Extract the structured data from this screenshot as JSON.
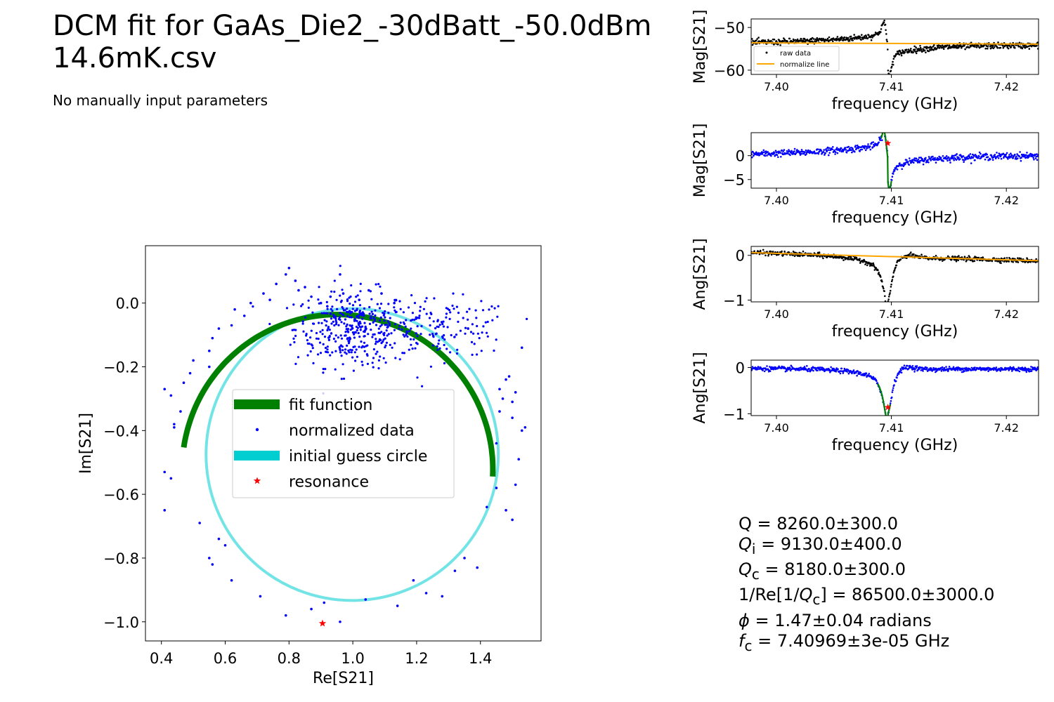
{
  "header": {
    "title_line1": "DCM fit for GaAs_Die2_-30dBatt_-50.0dBm",
    "title_line2": "14.6mK.csv",
    "subtitle": "No manually input parameters"
  },
  "results": {
    "q": "Q = 8260.0±300.0",
    "qi_sym": "Q",
    "qi_sub": "i",
    "qi_val": " = 9130.0±400.0",
    "qc_sym": "Q",
    "qc_sub": "c",
    "qc_val": " = 8180.0±300.0",
    "inv_pre": "1/Re[1/",
    "inv_sym": "Q",
    "inv_sub": "c",
    "inv_post": "] = 86500.0±3000.0",
    "phi_sym": "ϕ",
    "phi_val": " = 1.47±0.04 radians",
    "fc_sym": "f",
    "fc_sub": "c",
    "fc_val": " = 7.40969±3e-05 GHz"
  },
  "colors": {
    "raw": "#000000",
    "normalized": "#0000ff",
    "fit": "#008000",
    "guess": "#00ced1",
    "normalize_line": "#ffa500",
    "resonance": "#ff0000"
  },
  "chart_data": [
    {
      "id": "circle",
      "type": "scatter",
      "xlabel": "Re[S21]",
      "ylabel": "Im[S21]",
      "xlim": [
        0.35,
        1.59
      ],
      "ylim": [
        -1.06,
        0.18
      ],
      "xticks": [
        0.4,
        0.6,
        0.8,
        1.0,
        1.2,
        1.4
      ],
      "xtick_labels": [
        "0.4",
        "0.6",
        "0.8",
        "1.0",
        "1.2",
        "1.4"
      ],
      "yticks": [
        0.0,
        -0.2,
        -0.4,
        -0.6,
        -0.8,
        -1.0
      ],
      "ytick_labels": [
        "0.0",
        "−0.2",
        "−0.4",
        "−0.6",
        "−0.8",
        "−1.0"
      ],
      "legend": {
        "placement": "center",
        "entries": [
          "fit function",
          "normalized data",
          "initial guess circle",
          "resonance"
        ]
      },
      "fit_circle": {
        "center": [
          0.952,
          -0.523
        ],
        "radius": 0.487,
        "from_point": [
          0.45,
          -0.45
        ],
        "to_point": [
          1.455,
          -0.545
        ]
      },
      "guess_circle": {
        "center": [
          0.998,
          -0.475
        ],
        "radius": 0.458
      },
      "resonance": [
        0.905,
        -1.005
      ],
      "data": [
        [
          0.41,
          -0.27
        ],
        [
          0.43,
          -0.29
        ],
        [
          0.44,
          -0.38
        ],
        [
          0.44,
          -0.39
        ],
        [
          0.46,
          -0.34
        ],
        [
          0.47,
          -0.25
        ],
        [
          0.49,
          -0.22
        ],
        [
          0.5,
          -0.18
        ],
        [
          0.55,
          -0.15
        ],
        [
          0.55,
          -0.2
        ],
        [
          0.56,
          -0.11
        ],
        [
          0.58,
          -0.08
        ],
        [
          0.62,
          -0.07
        ],
        [
          0.63,
          -0.02
        ],
        [
          0.66,
          -0.04
        ],
        [
          0.68,
          0.0
        ],
        [
          0.72,
          0.03
        ],
        [
          0.74,
          0.01
        ],
        [
          0.76,
          0.06
        ],
        [
          0.79,
          0.09
        ],
        [
          0.8,
          0.11
        ],
        [
          0.82,
          0.07
        ],
        [
          0.83,
          0.04
        ],
        [
          0.85,
          0.05
        ],
        [
          0.87,
          0.02
        ],
        [
          0.9,
          0.0
        ],
        [
          0.92,
          -0.01
        ],
        [
          0.93,
          0.02
        ],
        [
          0.96,
          0.09
        ],
        [
          0.97,
          0.03
        ],
        [
          1.02,
          0.01
        ],
        [
          1.05,
          0.04
        ],
        [
          1.09,
          0.03
        ],
        [
          1.13,
          0.0
        ],
        [
          0.41,
          -0.53
        ],
        [
          0.41,
          -0.65
        ],
        [
          0.43,
          -0.55
        ],
        [
          0.52,
          -0.69
        ],
        [
          0.55,
          -0.8
        ],
        [
          0.56,
          -0.82
        ],
        [
          0.58,
          -0.74
        ],
        [
          0.6,
          -0.76
        ],
        [
          0.62,
          -0.87
        ],
        [
          0.71,
          -0.92
        ],
        [
          0.79,
          -0.98
        ],
        [
          0.87,
          -0.96
        ],
        [
          0.91,
          -0.94
        ],
        [
          0.96,
          -1.0
        ],
        [
          1.04,
          -0.93
        ],
        [
          1.14,
          -0.95
        ],
        [
          1.19,
          -0.87
        ],
        [
          1.23,
          -0.91
        ],
        [
          1.28,
          -0.92
        ],
        [
          1.32,
          -0.84
        ],
        [
          1.35,
          -0.8
        ],
        [
          1.39,
          -0.83
        ],
        [
          1.42,
          -0.64
        ],
        [
          1.45,
          -0.58
        ],
        [
          1.48,
          -0.65
        ],
        [
          1.5,
          -0.68
        ],
        [
          1.51,
          -0.57
        ],
        [
          1.52,
          -0.49
        ],
        [
          1.53,
          -0.4
        ],
        [
          1.54,
          -0.39
        ],
        [
          1.5,
          -0.36
        ],
        [
          1.51,
          -0.28
        ],
        [
          1.49,
          -0.23
        ],
        [
          1.5,
          -0.31
        ],
        [
          1.47,
          -0.3
        ],
        [
          1.46,
          -0.27
        ],
        [
          1.53,
          -0.14
        ],
        [
          1.48,
          -0.24
        ],
        [
          1.46,
          -0.34
        ],
        [
          1.45,
          -0.44
        ]
      ],
      "cluster": {
        "center": [
          1.0,
          -0.08
        ],
        "spread": [
          0.09,
          0.06
        ],
        "count": 380,
        "center2": [
          1.28,
          -0.08
        ],
        "spread2": [
          0.11,
          0.045
        ],
        "count2": 150
      }
    },
    {
      "id": "mag_raw",
      "type": "line",
      "xlabel": "frequency (GHz)",
      "ylabel": "Mag[S21]",
      "xlim": [
        7.3978,
        7.4228
      ],
      "ylim": [
        -61.0,
        -48.0
      ],
      "xticks": [
        7.4,
        7.41,
        7.42
      ],
      "xtick_labels": [
        "7.40",
        "7.41",
        "7.42"
      ],
      "yticks": [
        -50,
        -60
      ],
      "ytick_labels": [
        "−50",
        "−60"
      ],
      "legend": {
        "placement": "lower left",
        "entries": [
          "raw data",
          "normalize line"
        ]
      },
      "model": {
        "base": -54.0,
        "slope_per_ghz": -13.0,
        "amp": 4.4,
        "dip": -6.5
      },
      "normalize_line": [
        [
          7.3978,
          -53.6
        ],
        [
          7.4228,
          -53.9
        ]
      ]
    },
    {
      "id": "mag_norm",
      "type": "line",
      "xlabel": "frequency (GHz)",
      "ylabel": "Mag[S21]",
      "xlim": [
        7.3978,
        7.4228
      ],
      "ylim": [
        -6.8,
        4.8
      ],
      "xticks": [
        7.4,
        7.41,
        7.42
      ],
      "xtick_labels": [
        "7.40",
        "7.41",
        "7.42"
      ],
      "yticks": [
        0,
        -5
      ],
      "ytick_labels": [
        "0",
        "−5"
      ],
      "model": {
        "base": 0.0,
        "slope_per_ghz": 0.0,
        "amp": 4.3,
        "dip": -6.3
      },
      "fit_segment": [
        7.4091,
        7.41
      ],
      "resonance": [
        7.40969,
        2.6
      ]
    },
    {
      "id": "ang_raw",
      "type": "line",
      "xlabel": "frequency (GHz)",
      "ylabel": "Ang[S21]",
      "xlim": [
        7.3978,
        7.4228
      ],
      "ylim": [
        -1.04,
        0.2
      ],
      "xticks": [
        7.4,
        7.41,
        7.42
      ],
      "xtick_labels": [
        "7.40",
        "7.41",
        "7.42"
      ],
      "yticks": [
        0,
        -1
      ],
      "ytick_labels": [
        "0",
        "−1"
      ],
      "model": {
        "base": 0.05,
        "slope_per_ghz": -7.5,
        "depth": -1.0,
        "bump": 0.1
      },
      "normalize_line": [
        [
          7.3978,
          0.06
        ],
        [
          7.4228,
          -0.12
        ]
      ]
    },
    {
      "id": "ang_norm",
      "type": "line",
      "xlabel": "frequency (GHz)",
      "ylabel": "Ang[S21]",
      "xlim": [
        7.3978,
        7.4228
      ],
      "ylim": [
        -1.04,
        0.16
      ],
      "xticks": [
        7.4,
        7.41,
        7.42
      ],
      "xtick_labels": [
        "7.40",
        "7.41",
        "7.42"
      ],
      "yticks": [
        0,
        -1
      ],
      "ytick_labels": [
        "0",
        "−1"
      ],
      "model": {
        "base": -0.02,
        "slope_per_ghz": -0.5,
        "depth": -0.98,
        "bump": 0.1
      },
      "fit_segment": [
        7.4088,
        7.4099
      ],
      "resonance": [
        7.40969,
        -0.86
      ]
    }
  ]
}
